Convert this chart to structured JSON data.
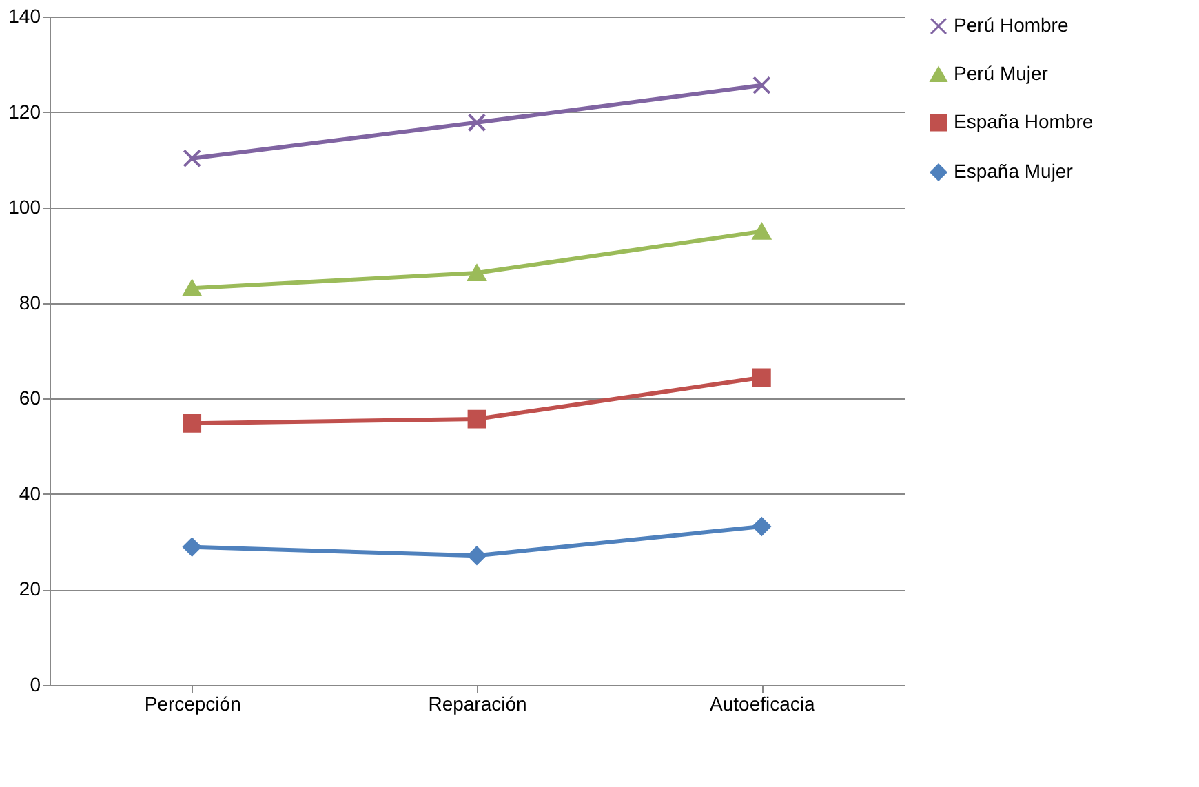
{
  "chart_data": {
    "type": "line",
    "categories": [
      "Percepción",
      "Reparación",
      "Autoeficacia"
    ],
    "series": [
      {
        "name": "Perú Hombre",
        "color": "#8064a2",
        "marker": "cross",
        "values": [
          110.3,
          117.8,
          125.6
        ]
      },
      {
        "name": "Perú Mujer",
        "color": "#9bbb59",
        "marker": "triangle",
        "values": [
          83.1,
          86.3,
          95.0
        ]
      },
      {
        "name": "España Hombre",
        "color": "#c0504d",
        "marker": "square",
        "values": [
          54.8,
          55.7,
          64.4
        ]
      },
      {
        "name": "España Mujer",
        "color": "#4f81bd",
        "marker": "diamond",
        "values": [
          28.9,
          27.1,
          33.2
        ]
      }
    ],
    "ylim": [
      0,
      140
    ],
    "yticks": [
      0,
      20,
      40,
      60,
      80,
      100,
      120,
      140
    ],
    "grid": "y",
    "legend": "right"
  }
}
